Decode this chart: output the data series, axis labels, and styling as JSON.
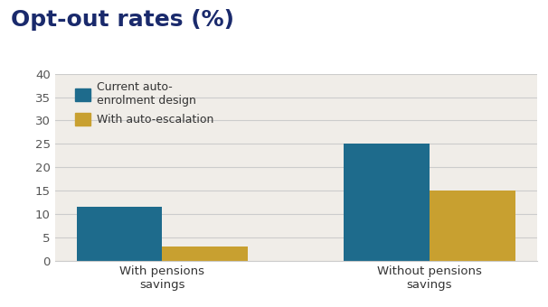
{
  "title": "Opt-out rates (%)",
  "title_color": "#1a2a6c",
  "title_fontsize": 18,
  "title_fontweight": "bold",
  "categories": [
    "With pensions\nsavings",
    "Without pensions\nsavings"
  ],
  "series": [
    {
      "label": "Current auto-\nenrolment design",
      "values": [
        11.5,
        25.0
      ],
      "color": "#1e6b8c"
    },
    {
      "label": "With auto-escalation",
      "values": [
        3.0,
        15.0
      ],
      "color": "#c8a030"
    }
  ],
  "ylim": [
    0,
    40
  ],
  "yticks": [
    0,
    5,
    10,
    15,
    20,
    25,
    30,
    35,
    40
  ],
  "bar_width": 0.32,
  "background_color": "#ffffff",
  "chart_bg_color": "#f0ede8",
  "grid_color": "#cccccc",
  "legend_fontsize": 9,
  "tick_fontsize": 9.5,
  "xlabel_fontsize": 9.5
}
